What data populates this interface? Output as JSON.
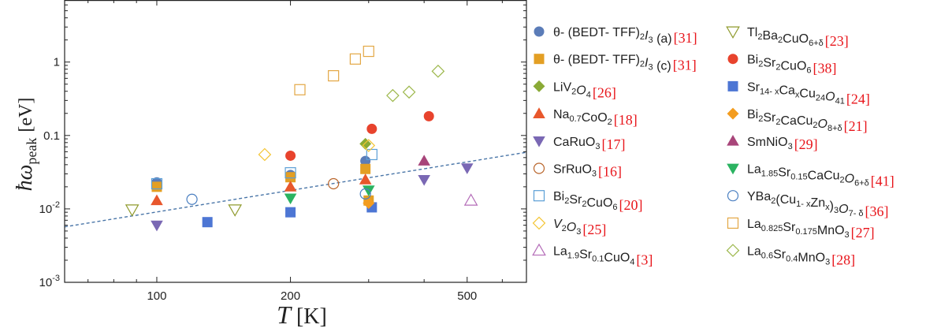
{
  "chart_data": {
    "type": "scatter",
    "x_scale": "log",
    "y_scale": "log",
    "xlim": [
      62,
      680
    ],
    "ylim": [
      0.001,
      7
    ],
    "x_ticks": [
      {
        "value": 100,
        "label": "100"
      },
      {
        "value": 200,
        "label": "200"
      },
      {
        "value": 500,
        "label": "500"
      }
    ],
    "y_ticks": [
      {
        "value": 0.001,
        "base": "10",
        "exp": "-3"
      },
      {
        "value": 0.01,
        "base": "10",
        "exp": "-2"
      },
      {
        "value": 0.1,
        "label": "0.1"
      },
      {
        "value": 1,
        "label": "1"
      }
    ],
    "xlabel_main": "T",
    "xlabel_unit": "[K]",
    "ylabel_main": "ħω",
    "ylabel_sub": "peak",
    "ylabel_unit": "[eV]",
    "grid": false,
    "fit_line": {
      "style": "dashed",
      "color": "#4a76a8",
      "points": [
        [
          62,
          0.0057
        ],
        [
          680,
          0.059
        ]
      ]
    },
    "series": [
      {
        "marker": "circle",
        "filled": true,
        "color": "#5b7cb8",
        "ref": "[31]",
        "legend": [
          [
            "θ- (BEDT- TFF)",
            ""
          ],
          [
            "2",
            "sub"
          ],
          [
            "I",
            "it"
          ],
          [
            "3",
            "sub"
          ],
          [
            " (a)",
            ""
          ]
        ],
        "points": [
          [
            100,
            0.023
          ],
          [
            200,
            0.029
          ],
          [
            295,
            0.045
          ]
        ]
      },
      {
        "marker": "square",
        "filled": true,
        "color": "#e39f24",
        "ref": "[31]",
        "legend": [
          [
            "θ- (BEDT- TFF)",
            ""
          ],
          [
            "2",
            "sub"
          ],
          [
            "I",
            "it"
          ],
          [
            "3",
            "sub"
          ],
          [
            " (c)",
            ""
          ]
        ],
        "points": [
          [
            100,
            0.02
          ],
          [
            200,
            0.027
          ],
          [
            295,
            0.035
          ],
          [
            300,
            0.013
          ]
        ]
      },
      {
        "marker": "diamond",
        "filled": true,
        "color": "#8aaa36",
        "ref": "[26]",
        "legend": [
          [
            "LiV",
            ""
          ],
          [
            "2",
            "sub"
          ],
          [
            "O",
            "it"
          ],
          [
            "4",
            "sub"
          ]
        ],
        "points": [
          [
            295,
            0.077
          ]
        ]
      },
      {
        "marker": "triangle-up",
        "filled": true,
        "color": "#e8572c",
        "ref": "[18]",
        "legend": [
          [
            "Na",
            ""
          ],
          [
            "0.7",
            "sub"
          ],
          [
            "CoO",
            ""
          ],
          [
            "2",
            "sub"
          ]
        ],
        "points": [
          [
            100,
            0.013
          ],
          [
            200,
            0.02
          ],
          [
            295,
            0.025
          ]
        ]
      },
      {
        "marker": "triangle-down",
        "filled": true,
        "color": "#7a68b4",
        "ref": "[17]",
        "legend": [
          [
            "CaRuO",
            ""
          ],
          [
            "3",
            "sub"
          ]
        ],
        "points": [
          [
            100,
            0.006
          ],
          [
            400,
            0.025
          ],
          [
            500,
            0.036
          ]
        ]
      },
      {
        "marker": "circle",
        "filled": false,
        "color": "#b9652b",
        "ref": "[16]",
        "legend": [
          [
            "SrRuO",
            ""
          ],
          [
            "3",
            "sub"
          ]
        ],
        "points": [
          [
            250,
            0.022
          ]
        ]
      },
      {
        "marker": "square",
        "filled": false,
        "color": "#5b9fd6",
        "ref": "[20]",
        "legend": [
          [
            "Bi",
            ""
          ],
          [
            "2",
            "sub"
          ],
          [
            "Sr",
            ""
          ],
          [
            "2",
            "sub"
          ],
          [
            "CuO",
            ""
          ],
          [
            "6",
            "sub"
          ]
        ],
        "points": [
          [
            100,
            0.022
          ],
          [
            200,
            0.031
          ],
          [
            305,
            0.055
          ]
        ]
      },
      {
        "marker": "diamond",
        "filled": false,
        "color": "#f4c534",
        "ref": "[25]",
        "legend": [
          [
            "V",
            "it"
          ],
          [
            "2",
            "sub"
          ],
          [
            "O",
            "it"
          ],
          [
            "3",
            "sub"
          ]
        ],
        "points": [
          [
            175,
            0.055
          ],
          [
            300,
            0.073
          ]
        ]
      },
      {
        "marker": "triangle-up",
        "filled": false,
        "color": "#b46cb8",
        "ref": "[3]",
        "legend": [
          [
            "La",
            ""
          ],
          [
            "1.9",
            "sub"
          ],
          [
            "Sr",
            ""
          ],
          [
            "0.1",
            "sub"
          ],
          [
            "CuO",
            ""
          ],
          [
            "4",
            "sub"
          ]
        ],
        "points": [
          [
            510,
            0.013
          ]
        ]
      },
      {
        "marker": "triangle-down",
        "filled": false,
        "color": "#8f9a2c",
        "ref": "[23]",
        "legend": [
          [
            "Tl",
            ""
          ],
          [
            "2",
            "sub"
          ],
          [
            "Ba",
            ""
          ],
          [
            "2",
            "sub"
          ],
          [
            "CuO",
            ""
          ],
          [
            "6+δ",
            "sub"
          ]
        ],
        "points": [
          [
            88,
            0.0098
          ],
          [
            150,
            0.0098
          ]
        ]
      },
      {
        "marker": "circle",
        "filled": true,
        "color": "#e8432d",
        "ref": "[38]",
        "legend": [
          [
            "Bi",
            ""
          ],
          [
            "2",
            "sub"
          ],
          [
            "Sr",
            ""
          ],
          [
            "2",
            "sub"
          ],
          [
            "CuO",
            ""
          ],
          [
            "6",
            "sub"
          ]
        ],
        "points": [
          [
            200,
            0.053
          ],
          [
            305,
            0.123
          ],
          [
            410,
            0.183
          ]
        ]
      },
      {
        "marker": "square",
        "filled": true,
        "color": "#4d76d4",
        "ref": "[24]",
        "legend": [
          [
            "Sr",
            ""
          ],
          [
            "14- x",
            "sub"
          ],
          [
            "Ca",
            ""
          ],
          [
            "x",
            "sub"
          ],
          [
            "Cu",
            ""
          ],
          [
            "24",
            "sub"
          ],
          [
            "O",
            "it"
          ],
          [
            "41",
            "sub"
          ]
        ],
        "points": [
          [
            130,
            0.0066
          ],
          [
            200,
            0.009
          ],
          [
            305,
            0.0105
          ]
        ]
      },
      {
        "marker": "diamond",
        "filled": true,
        "color": "#f39c1f",
        "ref": "[21]",
        "legend": [
          [
            "Bi",
            ""
          ],
          [
            "2",
            "sub"
          ],
          [
            "Sr",
            ""
          ],
          [
            "2",
            "sub"
          ],
          [
            "CaCu",
            ""
          ],
          [
            "2",
            "sub"
          ],
          [
            "O",
            "it"
          ],
          [
            "8+δ",
            "sub"
          ]
        ],
        "points": [
          [
            300,
            0.012
          ]
        ]
      },
      {
        "marker": "triangle-up",
        "filled": true,
        "color": "#a8457a",
        "ref": "[29]",
        "legend": [
          [
            "SmNiO",
            ""
          ],
          [
            "3",
            "sub"
          ]
        ],
        "points": [
          [
            400,
            0.045
          ]
        ]
      },
      {
        "marker": "triangle-down",
        "filled": true,
        "color": "#2bb361",
        "ref": "[41]",
        "legend": [
          [
            "La",
            ""
          ],
          [
            "1.85",
            "sub"
          ],
          [
            "Sr",
            ""
          ],
          [
            "0.15",
            "sub"
          ],
          [
            "CaCu",
            ""
          ],
          [
            "2",
            "sub"
          ],
          [
            "O",
            "it"
          ],
          [
            "6+δ",
            "sub"
          ]
        ],
        "points": [
          [
            200,
            0.014
          ],
          [
            300,
            0.018
          ]
        ]
      },
      {
        "marker": "circle",
        "filled": false,
        "color": "#4a7fc1",
        "ref": "[36]",
        "legend": [
          [
            "YBa",
            ""
          ],
          [
            "2",
            "sub"
          ],
          [
            "(Cu",
            ""
          ],
          [
            "1- x",
            "sub"
          ],
          [
            "Zn",
            ""
          ],
          [
            "x",
            "sub"
          ],
          [
            ")",
            ""
          ],
          [
            "3",
            "sub"
          ],
          [
            "O",
            "it"
          ],
          [
            "7- δ",
            "sub"
          ]
        ],
        "points": [
          [
            120,
            0.0135
          ],
          [
            295,
            0.016
          ]
        ]
      },
      {
        "marker": "square",
        "filled": false,
        "color": "#e3a744",
        "ref": "[27]",
        "legend": [
          [
            "La",
            ""
          ],
          [
            "0.825",
            "sub"
          ],
          [
            "Sr",
            ""
          ],
          [
            "0.175",
            "sub"
          ],
          [
            "MnO",
            ""
          ],
          [
            "3",
            "sub"
          ]
        ],
        "points": [
          [
            210,
            0.42
          ],
          [
            250,
            0.65
          ],
          [
            280,
            1.1
          ],
          [
            300,
            1.4
          ]
        ]
      },
      {
        "marker": "diamond",
        "filled": false,
        "color": "#9cb74a",
        "ref": "[28]",
        "legend": [
          [
            "La",
            ""
          ],
          [
            "0.6",
            "sub"
          ],
          [
            "Sr",
            ""
          ],
          [
            "0.4",
            "sub"
          ],
          [
            "MnO",
            ""
          ],
          [
            "3",
            "sub"
          ]
        ],
        "points": [
          [
            340,
            0.35
          ],
          [
            370,
            0.39
          ],
          [
            430,
            0.75
          ]
        ]
      }
    ]
  }
}
